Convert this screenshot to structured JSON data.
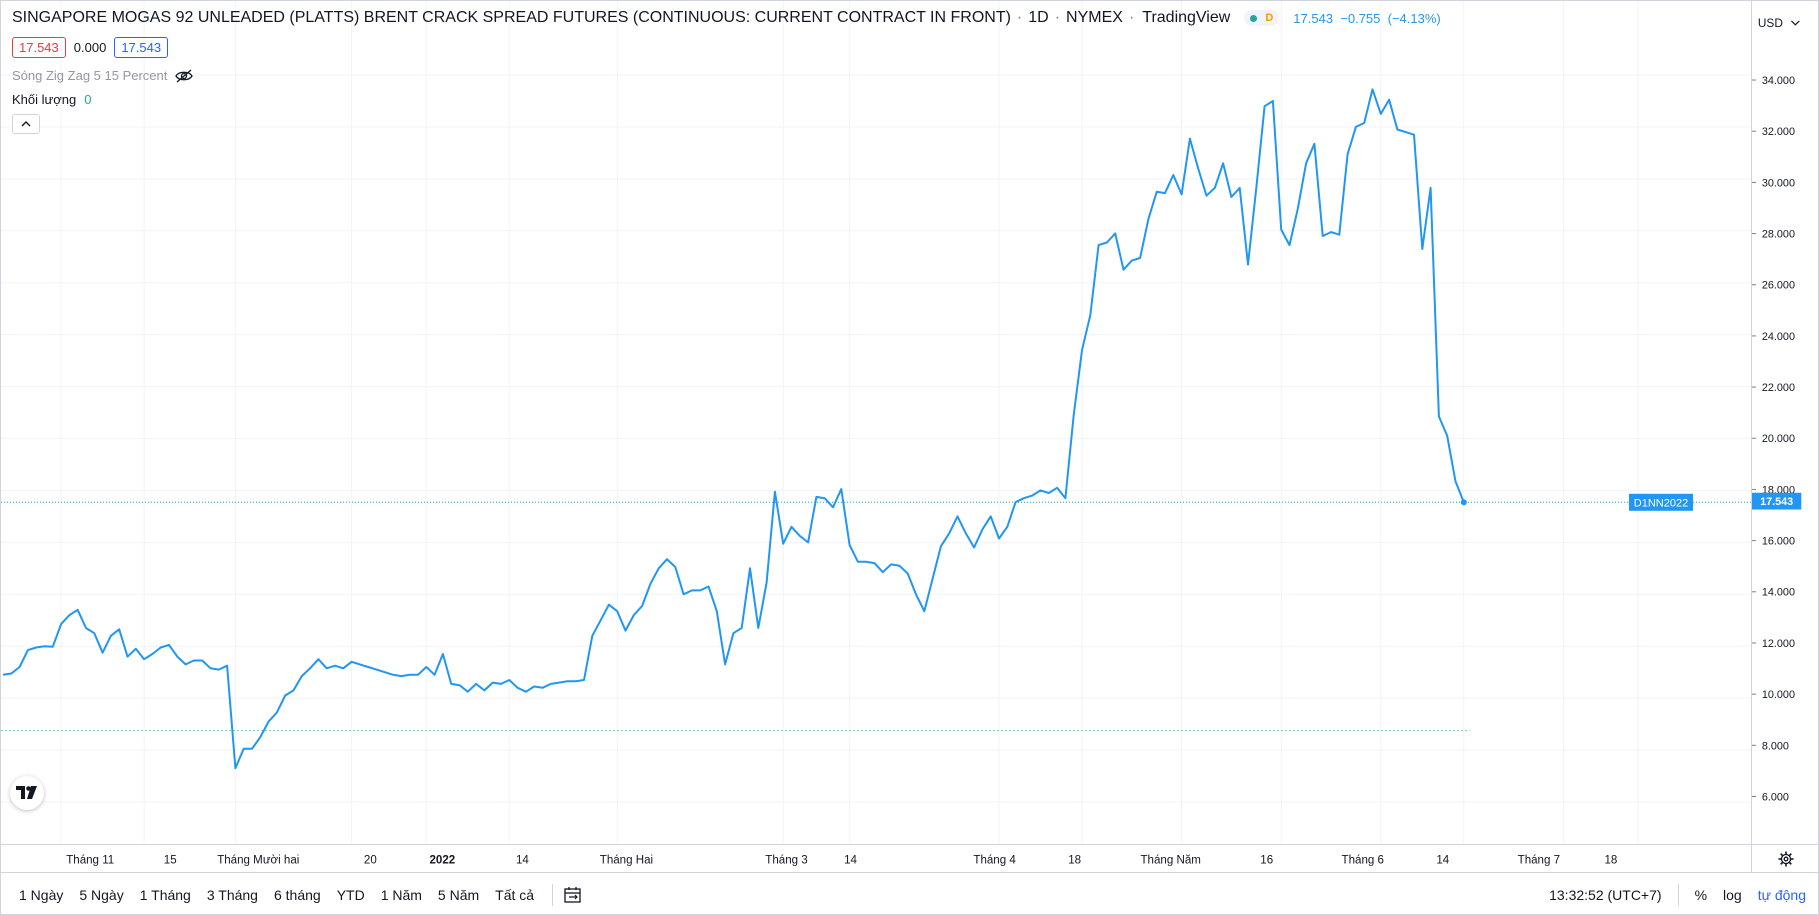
{
  "legend": {
    "symbol_title": "SINGAPORE MOGAS 92 UNLEADED (PLATTS) BRENT CRACK SPREAD FUTURES (CONTINUOUS: CURRENT CONTRACT IN FRONT)",
    "interval": "1D",
    "exchange": "NYMEX",
    "source": "TradingView",
    "status_letter": "D",
    "last": "17.543",
    "change": "−0.755",
    "change_pct": "(−4.13%)",
    "bid": "17.543",
    "spread": "0.000",
    "ask": "17.543"
  },
  "indicators": {
    "zigzag_label": "Sóng Zig Zag 5 15 Percent",
    "volume_label": "Khối lượng",
    "volume_value": "0"
  },
  "colors": {
    "line": "#2196f3",
    "grid": "#f0f3fa",
    "axis_text": "#131722",
    "dotted_ref": "#26a69a",
    "price_tag": "#2196f3"
  },
  "price_axis": {
    "currency": "USD"
  },
  "last_price_tags": {
    "contract": "D1NN2022",
    "price": "17.543"
  },
  "chart_data": {
    "type": "line",
    "title": "SINGAPORE MOGAS 92 UNLEADED (PLATTS) BRENT CRACK SPREAD FUTURES (CONTINUOUS: CURRENT CONTRACT IN FRONT)",
    "xlabel": "",
    "ylabel": "",
    "ylim": [
      5.0,
      35.5
    ],
    "y_ticks": [
      6,
      8,
      10,
      12,
      14,
      16,
      18,
      20,
      22,
      24,
      26,
      28,
      30,
      32,
      34
    ],
    "y_tick_labels": [
      "6.000",
      "8.000",
      "10.000",
      "12.000",
      "14.000",
      "16.000",
      "18.000",
      "20.000",
      "22.000",
      "24.000",
      "26.000",
      "28.000",
      "30.000",
      "32.000",
      "34.000"
    ],
    "x_tick_labels": [
      {
        "label": "Tháng 11",
        "bold": false
      },
      {
        "label": "15",
        "bold": false
      },
      {
        "label": "Tháng Mười hai",
        "bold": false
      },
      {
        "label": "20",
        "bold": false
      },
      {
        "label": "2022",
        "bold": true
      },
      {
        "label": "14",
        "bold": false
      },
      {
        "label": "Tháng Hai",
        "bold": false
      },
      {
        "label": "Tháng 3",
        "bold": false
      },
      {
        "label": "14",
        "bold": false
      },
      {
        "label": "Tháng 4",
        "bold": false
      },
      {
        "label": "18",
        "bold": false
      },
      {
        "label": "Tháng Năm",
        "bold": false
      },
      {
        "label": "16",
        "bold": false
      },
      {
        "label": "Tháng 6",
        "bold": false
      },
      {
        "label": "14",
        "bold": false
      },
      {
        "label": "Tháng 7",
        "bold": false
      },
      {
        "label": "18",
        "bold": false
      }
    ],
    "x_tick_bar_index": [
      7,
      17,
      28,
      42,
      51,
      61,
      74,
      94,
      102,
      120,
      130,
      142,
      154,
      166,
      176,
      188,
      197
    ],
    "bar_count_to_right_edge": 202,
    "reference_level": 8.75,
    "series": [
      {
        "values": [
          10.9,
          10.95,
          11.2,
          11.85,
          11.95,
          12.0,
          11.98,
          12.85,
          13.2,
          13.4,
          12.7,
          12.5,
          11.75,
          12.4,
          12.65,
          11.6,
          11.9,
          11.5,
          11.7,
          11.95,
          12.05,
          11.6,
          11.3,
          11.45,
          11.45,
          11.15,
          11.1,
          11.25,
          7.3,
          8.05,
          8.05,
          8.5,
          9.1,
          9.45,
          10.1,
          10.3,
          10.85,
          11.15,
          11.5,
          11.15,
          11.25,
          11.15,
          11.4,
          11.3,
          11.2,
          11.1,
          11.0,
          10.9,
          10.85,
          10.9,
          10.9,
          11.2,
          10.9,
          11.7,
          10.55,
          10.5,
          10.25,
          10.55,
          10.3,
          10.6,
          10.55,
          10.7,
          10.4,
          10.25,
          10.45,
          10.4,
          10.55,
          10.6,
          10.65,
          10.65,
          10.7,
          12.4,
          13.0,
          13.6,
          13.35,
          12.6,
          13.2,
          13.55,
          14.4,
          15.0,
          15.35,
          15.05,
          14.0,
          14.15,
          14.15,
          14.3,
          13.35,
          11.3,
          12.5,
          12.7,
          15.0,
          12.7,
          14.45,
          17.95,
          15.95,
          16.6,
          16.25,
          16.0,
          17.75,
          17.7,
          17.35,
          18.05,
          15.9,
          15.25,
          15.25,
          15.2,
          14.85,
          15.15,
          15.1,
          14.8,
          14.0,
          13.35,
          14.6,
          15.85,
          16.35,
          17.0,
          16.35,
          15.8,
          16.5,
          17.0,
          16.15,
          16.6,
          17.55,
          17.7,
          17.8,
          18.0,
          17.9,
          18.1,
          17.7,
          20.9,
          23.4,
          24.75,
          27.45,
          27.55,
          27.9,
          26.5,
          26.85,
          26.95,
          28.45,
          29.5,
          29.45,
          30.15,
          29.4,
          31.55,
          30.4,
          29.35,
          29.65,
          30.6,
          29.3,
          29.65,
          26.7,
          29.65,
          32.8,
          33.0,
          28.05,
          27.45,
          28.85,
          30.6,
          31.35,
          27.8,
          27.95,
          27.85,
          30.95,
          32.0,
          32.15,
          33.45,
          32.5,
          33.05,
          31.9,
          31.8,
          31.7,
          27.3,
          29.65,
          20.85,
          20.1,
          18.35,
          17.543
        ]
      }
    ]
  },
  "bottom_bar": {
    "ranges": [
      "1 Ngày",
      "5 Ngày",
      "1 Tháng",
      "3 Tháng",
      "6 tháng",
      "YTD",
      "1 Năm",
      "5 Năm",
      "Tất cả"
    ],
    "time": "13:32:52 (UTC+7)",
    "percent": "%",
    "log": "log",
    "auto": "tự động"
  }
}
